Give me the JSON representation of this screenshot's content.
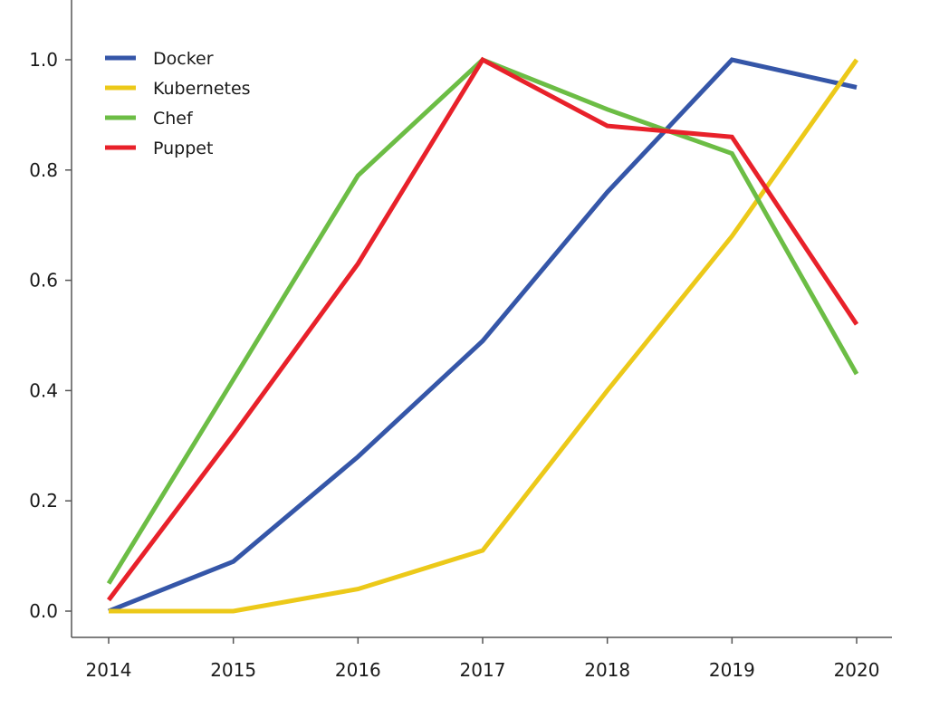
{
  "chart_data": {
    "type": "line",
    "title": "",
    "xlabel": "",
    "ylabel": "",
    "x": [
      "2014",
      "2015",
      "2016",
      "2017",
      "2018",
      "2019",
      "2020"
    ],
    "ylim": [
      -0.05,
      1.1
    ],
    "yticks": [
      "0.0",
      "0.2",
      "0.4",
      "0.6",
      "0.8",
      "1.0"
    ],
    "grid": false,
    "legend_position": "top-left",
    "series": [
      {
        "name": "Docker",
        "color": "#3556a8",
        "values": [
          0.0,
          0.09,
          0.28,
          0.49,
          0.76,
          1.0,
          0.95
        ]
      },
      {
        "name": "Kubernetes",
        "color": "#ecc919",
        "values": [
          0.0,
          0.0,
          0.04,
          0.11,
          0.4,
          0.68,
          1.0
        ]
      },
      {
        "name": "Chef",
        "color": "#6cbd45",
        "values": [
          0.05,
          0.42,
          0.79,
          1.0,
          0.91,
          0.83,
          0.43
        ]
      },
      {
        "name": "Puppet",
        "color": "#e8212a",
        "values": [
          0.02,
          0.32,
          0.63,
          1.0,
          0.88,
          0.86,
          0.52
        ]
      }
    ]
  }
}
